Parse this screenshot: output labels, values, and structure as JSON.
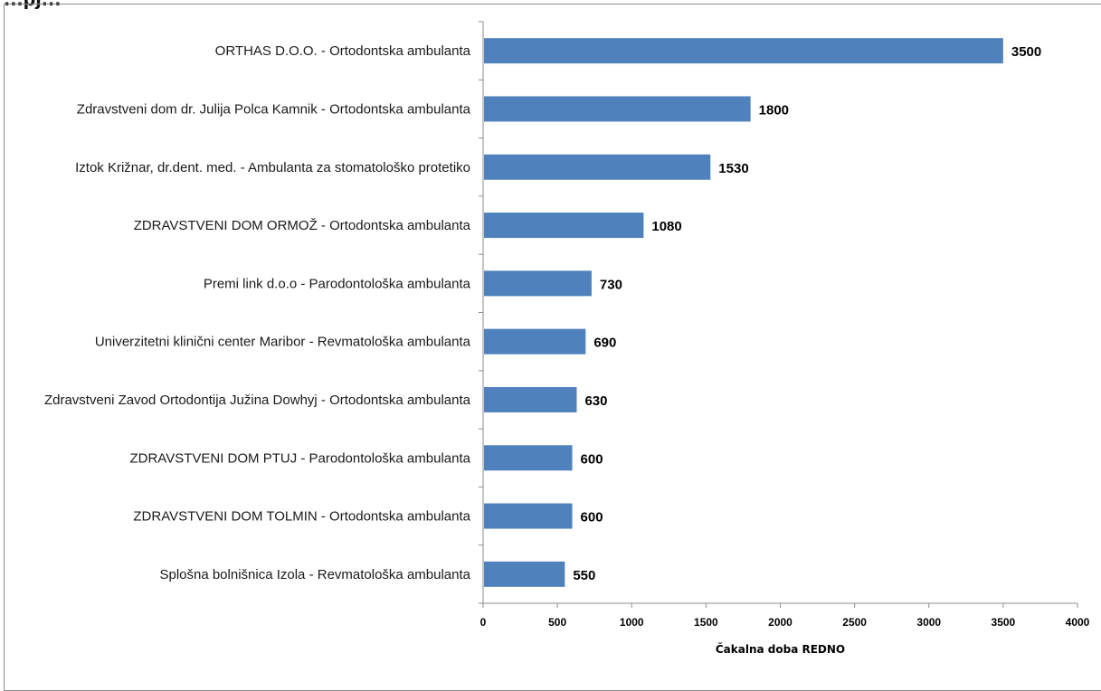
{
  "header": {
    "cropped_title": "...pj..."
  },
  "chart_data": {
    "type": "bar",
    "orientation": "horizontal",
    "categories": [
      "ORTHAS D.O.O. - Ortodontska ambulanta",
      "Zdravstveni dom dr. Julija Polca Kamnik - Ortodontska ambulanta",
      "Iztok Križnar, dr.dent. med. - Ambulanta za stomatološko protetiko",
      "ZDRAVSTVENI DOM ORMOŽ - Ortodontska ambulanta",
      "Premi link d.o.o - Parodontološka ambulanta",
      "Univerzitetni klinični center Maribor - Revmatološka ambulanta",
      "Zdravstveni Zavod Ortodontija Južina Dowhyj - Ortodontska ambulanta",
      "ZDRAVSTVENI DOM PTUJ - Parodontološka ambulanta",
      "ZDRAVSTVENI DOM TOLMIN - Ortodontska ambulanta",
      "Splošna bolnišnica Izola - Revmatološka ambulanta"
    ],
    "values": [
      3500,
      1800,
      1530,
      1080,
      730,
      690,
      630,
      600,
      600,
      550
    ],
    "xlabel": "Čakalna doba REDNO",
    "ylabel": "",
    "xlim": [
      0,
      4000
    ],
    "xticks": [
      0,
      500,
      1000,
      1500,
      2000,
      2500,
      3000,
      3500,
      4000
    ],
    "data_labels": true,
    "grid": false,
    "bar_color": "#4f81bd"
  }
}
